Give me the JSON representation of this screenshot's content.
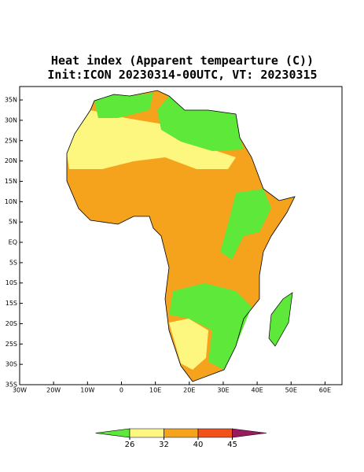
{
  "chart_data": {
    "type": "map",
    "title": "Heat index (Apparent tempearture (C))",
    "subtitle": "Init:ICON 20230314-00UTC, VT: 20230315",
    "xlim": [
      -30,
      65
    ],
    "ylim": [
      -35,
      38.3
    ],
    "xticks": [
      {
        "value": -30,
        "label": "30W"
      },
      {
        "value": -20,
        "label": "20W"
      },
      {
        "value": -10,
        "label": "10W"
      },
      0,
      {
        "value": 10,
        "label": "10E"
      },
      {
        "value": 20,
        "label": "20E"
      },
      {
        "value": 30,
        "label": "30E"
      },
      {
        "value": 40,
        "label": "40E"
      },
      {
        "value": 50,
        "label": "50E"
      },
      {
        "value": 60,
        "label": "60E"
      }
    ],
    "yticks": [
      {
        "value": 35,
        "label": "35N"
      },
      {
        "value": 30,
        "label": "30N"
      },
      {
        "value": 25,
        "label": "25N"
      },
      {
        "value": 20,
        "label": "20N"
      },
      {
        "value": 15,
        "label": "15N"
      },
      {
        "value": 10,
        "label": "10N"
      },
      {
        "value": 5,
        "label": "5N"
      },
      {
        "value": 0,
        "label": "EQ"
      },
      {
        "value": -5,
        "label": "5S"
      },
      {
        "value": -10,
        "label": "10S"
      },
      {
        "value": -15,
        "label": "15S"
      },
      {
        "value": -20,
        "label": "20S"
      },
      {
        "value": -25,
        "label": "25S"
      },
      {
        "value": -30,
        "label": "30S"
      },
      {
        "value": -35,
        "label": "35S"
      }
    ],
    "colorbar": {
      "ticks": [
        26,
        32,
        40,
        45
      ],
      "colors": [
        "#5ee83a",
        "#fdf67f",
        "#f5a31c",
        "#f2521a",
        "#9a1a5e"
      ]
    }
  }
}
